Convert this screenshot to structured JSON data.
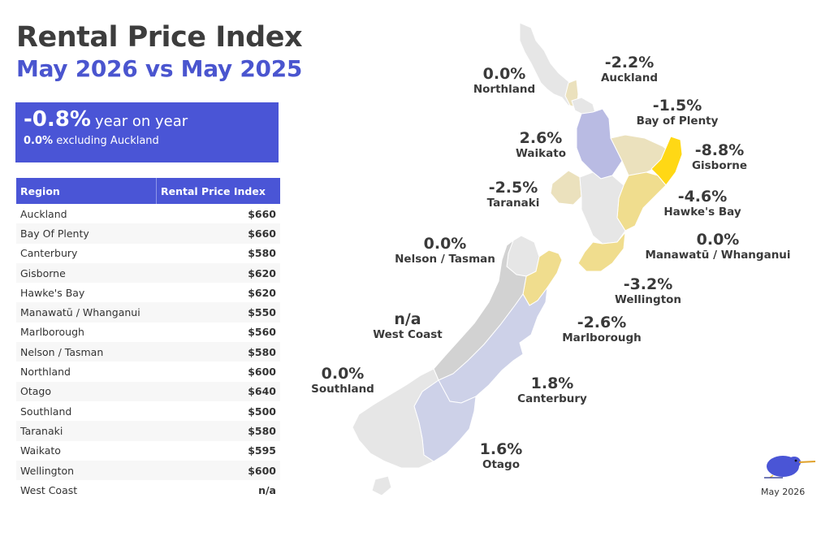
{
  "header": {
    "title": "Rental Price Index",
    "subtitle": "May 2026 vs May 2025"
  },
  "kpi": {
    "yoy_value": "-0.8%",
    "yoy_label": "year on year",
    "ex_value": "0.0%",
    "ex_label": "excluding Auckland"
  },
  "table": {
    "col_region": "Region",
    "col_index": "Rental Price Index",
    "rows": [
      {
        "region": "Auckland",
        "value": "$660"
      },
      {
        "region": "Bay Of Plenty",
        "value": "$660"
      },
      {
        "region": "Canterbury",
        "value": "$580"
      },
      {
        "region": "Gisborne",
        "value": "$620"
      },
      {
        "region": "Hawke's Bay",
        "value": "$620"
      },
      {
        "region": "Manawatū / Whanganui",
        "value": "$550"
      },
      {
        "region": "Marlborough",
        "value": "$560"
      },
      {
        "region": "Nelson / Tasman",
        "value": "$580"
      },
      {
        "region": "Northland",
        "value": "$600"
      },
      {
        "region": "Otago",
        "value": "$640"
      },
      {
        "region": "Southland",
        "value": "$500"
      },
      {
        "region": "Taranaki",
        "value": "$580"
      },
      {
        "region": "Waikato",
        "value": "$595"
      },
      {
        "region": "Wellington",
        "value": "$600"
      },
      {
        "region": "West Coast",
        "value": "n/a"
      }
    ]
  },
  "map_labels": {
    "northland": {
      "pct": "0.0%",
      "name": "Northland"
    },
    "auckland": {
      "pct": "-2.2%",
      "name": "Auckland"
    },
    "bay_of_plenty": {
      "pct": "-1.5%",
      "name": "Bay of Plenty"
    },
    "waikato": {
      "pct": "2.6%",
      "name": "Waikato"
    },
    "gisborne": {
      "pct": "-8.8%",
      "name": "Gisborne"
    },
    "taranaki": {
      "pct": "-2.5%",
      "name": "Taranaki"
    },
    "hawkes_bay": {
      "pct": "-4.6%",
      "name": "Hawke's Bay"
    },
    "nelson_tasman": {
      "pct": "0.0%",
      "name": "Nelson / Tasman"
    },
    "manawatu": {
      "pct": "0.0%",
      "name": "Manawatū / Whanganui"
    },
    "wellington": {
      "pct": "-3.2%",
      "name": "Wellington"
    },
    "west_coast": {
      "pct": "n/a",
      "name": "West Coast"
    },
    "marlborough": {
      "pct": "-2.6%",
      "name": "Marlborough"
    },
    "southland": {
      "pct": "0.0%",
      "name": "Southland"
    },
    "canterbury": {
      "pct": "1.8%",
      "name": "Canterbury"
    },
    "otago": {
      "pct": "1.6%",
      "name": "Otago"
    }
  },
  "colors": {
    "accent": "#4a55d6",
    "positive_high": "#b9bbe3",
    "positive_low": "#cdd1e8",
    "neutral": "#e6e6e6",
    "neutral_dark": "#d2d2d2",
    "negative_low": "#ebe1bd",
    "negative_mid": "#f0dd8e",
    "negative_high": "#f3d85e",
    "negative_max": "#ffd815"
  },
  "logo": {
    "icon": "kiwi-bird-icon"
  },
  "footer": {
    "date": "May 2026"
  }
}
